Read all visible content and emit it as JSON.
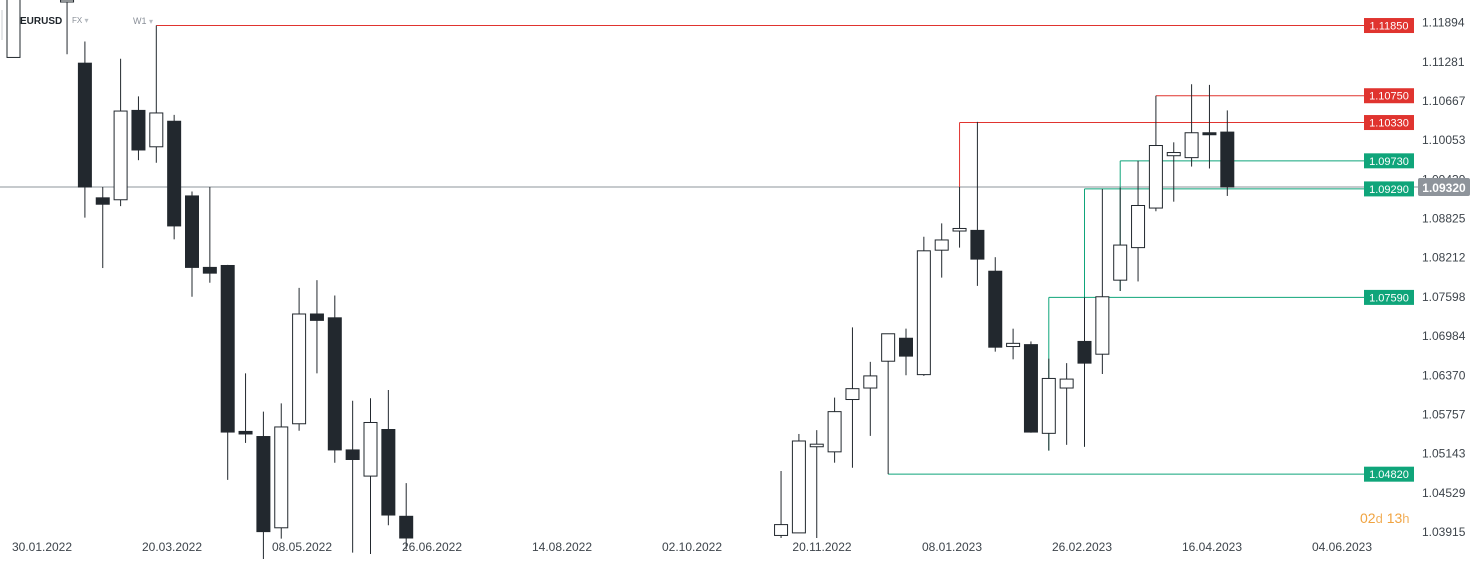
{
  "header": {
    "symbol": "EURUSD",
    "market": "FX",
    "timeframe": "W1",
    "caret": "▾"
  },
  "countdown": {
    "days": "02",
    "days_unit": "d",
    "hours": "13",
    "hours_unit": "h"
  },
  "colors": {
    "bull": "#ffffff",
    "bear": "#22282e",
    "resistance": "#e0342f",
    "support": "#0fa57a",
    "current": "#8e949b"
  },
  "chart_data": {
    "type": "candlestick",
    "title": "",
    "xlabel": "",
    "ylabel": "",
    "ylim": [
      1.0382,
      1.1225
    ],
    "y_ticks": [
      "1.11894",
      "1.11281",
      "1.10667",
      "1.10053",
      "1.09439",
      "1.08825",
      "1.08212",
      "1.07598",
      "1.06984",
      "1.06370",
      "1.05757",
      "1.05143",
      "1.04529",
      "1.03915"
    ],
    "x_ticks": [
      "30.01.2022",
      "20.03.2022",
      "08.05.2022",
      "26.06.2022",
      "14.08.2022",
      "02.10.2022",
      "20.11.2022",
      "08.01.2023",
      "26.02.2023",
      "16.04.2023",
      "04.06.2023"
    ],
    "current_price": "1.09320",
    "levels": [
      {
        "label": "1.11850",
        "value": 1.1185,
        "kind": "resistance",
        "from_bar": 8
      },
      {
        "label": "1.10750",
        "value": 1.1075,
        "kind": "resistance",
        "from_bar": 64
      },
      {
        "label": "1.10330",
        "value": 1.1033,
        "kind": "resistance",
        "from_bar": 53
      },
      {
        "label": "1.09730",
        "value": 1.0973,
        "kind": "support",
        "from_bar": 62
      },
      {
        "label": "1.09290",
        "value": 1.0929,
        "kind": "support",
        "from_bar": 60
      },
      {
        "label": "1.07590",
        "value": 1.0759,
        "kind": "support",
        "from_bar": 58
      },
      {
        "label": "1.04820",
        "value": 1.0482,
        "kind": "support",
        "from_bar": 49
      }
    ],
    "candles": [
      {
        "i": 0,
        "o": 1.1135,
        "h": 1.123,
        "l": 1.1135,
        "c": 1.123
      },
      {
        "i": 3,
        "o": 1.1225,
        "h": 1.123,
        "l": 1.114,
        "c": 1.1225
      },
      {
        "i": 4,
        "o": 1.1126,
        "h": 1.116,
        "l": 1.0884,
        "c": 1.0932
      },
      {
        "i": 5,
        "o": 1.0915,
        "h": 1.0932,
        "l": 1.0805,
        "c": 1.0905
      },
      {
        "i": 6,
        "o": 1.0912,
        "h": 1.1133,
        "l": 1.0902,
        "c": 1.1051
      },
      {
        "i": 7,
        "o": 1.1052,
        "h": 1.1074,
        "l": 1.0974,
        "c": 1.099
      },
      {
        "i": 8,
        "o": 1.0995,
        "h": 1.1185,
        "l": 1.097,
        "c": 1.1048
      },
      {
        "i": 9,
        "o": 1.1035,
        "h": 1.1045,
        "l": 1.085,
        "c": 1.0871
      },
      {
        "i": 10,
        "o": 1.0918,
        "h": 1.0925,
        "l": 1.076,
        "c": 1.0806
      },
      {
        "i": 11,
        "o": 1.0806,
        "h": 1.0932,
        "l": 1.0782,
        "c": 1.0797
      },
      {
        "i": 12,
        "o": 1.0809,
        "h": 1.081,
        "l": 1.0473,
        "c": 1.0548
      },
      {
        "i": 13,
        "o": 1.0549,
        "h": 1.064,
        "l": 1.0531,
        "c": 1.0545
      },
      {
        "i": 14,
        "o": 1.0541,
        "h": 1.058,
        "l": 1.0349,
        "c": 1.0392
      },
      {
        "i": 15,
        "o": 1.0398,
        "h": 1.0593,
        "l": 1.0381,
        "c": 1.0556
      },
      {
        "i": 16,
        "o": 1.0561,
        "h": 1.0774,
        "l": 1.055,
        "c": 1.0733
      },
      {
        "i": 17,
        "o": 1.0733,
        "h": 1.0786,
        "l": 1.064,
        "c": 1.0723
      },
      {
        "i": 18,
        "o": 1.0727,
        "h": 1.0762,
        "l": 1.05,
        "c": 1.052
      },
      {
        "i": 19,
        "o": 1.052,
        "h": 1.0597,
        "l": 1.0359,
        "c": 1.0505
      },
      {
        "i": 20,
        "o": 1.0479,
        "h": 1.0601,
        "l": 1.0357,
        "c": 1.0563
      },
      {
        "i": 21,
        "o": 1.0552,
        "h": 1.0614,
        "l": 1.0402,
        "c": 1.0418
      },
      {
        "i": 22,
        "o": 1.0416,
        "h": 1.0468,
        "l": 1.0364,
        "c": 1.0382
      },
      {
        "i": 43,
        "o": 1.0386,
        "h": 1.0487,
        "l": 1.0382,
        "c": 1.0403
      },
      {
        "i": 44,
        "o": 1.039,
        "h": 1.0545,
        "l": 1.0392,
        "c": 1.0534
      },
      {
        "i": 45,
        "o": 1.0525,
        "h": 1.0551,
        "l": 1.0382,
        "c": 1.0529
      },
      {
        "i": 46,
        "o": 1.0517,
        "h": 1.0602,
        "l": 1.05,
        "c": 1.058
      },
      {
        "i": 47,
        "o": 1.0599,
        "h": 1.0712,
        "l": 1.0492,
        "c": 1.0616
      },
      {
        "i": 48,
        "o": 1.0617,
        "h": 1.0658,
        "l": 1.0542,
        "c": 1.0636
      },
      {
        "i": 49,
        "o": 1.0659,
        "h": 1.0701,
        "l": 1.0482,
        "c": 1.0702
      },
      {
        "i": 50,
        "o": 1.0695,
        "h": 1.071,
        "l": 1.0637,
        "c": 1.0667
      },
      {
        "i": 51,
        "o": 1.0638,
        "h": 1.0854,
        "l": 1.0636,
        "c": 1.0832
      },
      {
        "i": 52,
        "o": 1.0833,
        "h": 1.0875,
        "l": 1.079,
        "c": 1.0849
      },
      {
        "i": 53,
        "o": 1.0863,
        "h": 1.0932,
        "l": 1.0837,
        "c": 1.0867
      },
      {
        "i": 54,
        "o": 1.0864,
        "h": 1.1034,
        "l": 1.0777,
        "c": 1.0819
      },
      {
        "i": 55,
        "o": 1.08,
        "h": 1.0822,
        "l": 1.0674,
        "c": 1.0681
      },
      {
        "i": 56,
        "o": 1.0682,
        "h": 1.071,
        "l": 1.0662,
        "c": 1.0687
      },
      {
        "i": 57,
        "o": 1.0685,
        "h": 1.069,
        "l": 1.0547,
        "c": 1.0548
      },
      {
        "i": 58,
        "o": 1.0546,
        "h": 1.0663,
        "l": 1.0519,
        "c": 1.0632
      },
      {
        "i": 59,
        "o": 1.0617,
        "h": 1.0656,
        "l": 1.0528,
        "c": 1.0631
      },
      {
        "i": 60,
        "o": 1.069,
        "h": 1.0759,
        "l": 1.0525,
        "c": 1.0656
      },
      {
        "i": 61,
        "o": 1.067,
        "h": 1.0929,
        "l": 1.0639,
        "c": 1.076
      },
      {
        "i": 62,
        "o": 1.0786,
        "h": 1.0931,
        "l": 1.0769,
        "c": 1.0841
      },
      {
        "i": 63,
        "o": 1.0837,
        "h": 1.0973,
        "l": 1.0784,
        "c": 1.0903
      },
      {
        "i": 64,
        "o": 1.0899,
        "h": 1.1075,
        "l": 1.0894,
        "c": 1.0997
      },
      {
        "i": 65,
        "o": 1.0981,
        "h": 1.1002,
        "l": 1.0909,
        "c": 1.0986
      },
      {
        "i": 66,
        "o": 1.0978,
        "h": 1.1093,
        "l": 1.0964,
        "c": 1.1017
      },
      {
        "i": 67,
        "o": 1.1017,
        "h": 1.1092,
        "l": 1.0961,
        "c": 1.1014
      },
      {
        "i": 68,
        "o": 1.1018,
        "h": 1.1052,
        "l": 1.0918,
        "c": 1.0932
      }
    ]
  }
}
